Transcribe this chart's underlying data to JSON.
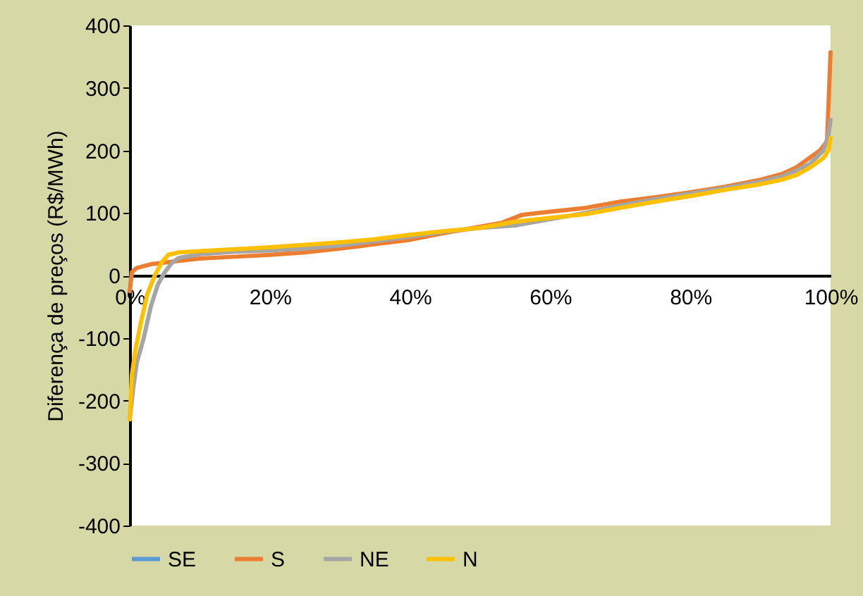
{
  "chart_data": {
    "type": "line",
    "ylabel": "Diferença de preços (R$/MWh)",
    "xlim": [
      0,
      100
    ],
    "xticks": [
      {
        "value": 0,
        "label": "0%"
      },
      {
        "value": 20,
        "label": "20%"
      },
      {
        "value": 40,
        "label": "40%"
      },
      {
        "value": 60,
        "label": "60%"
      },
      {
        "value": 80,
        "label": "80%"
      },
      {
        "value": 100,
        "label": "100%"
      }
    ],
    "ylim": [
      -400,
      400
    ],
    "yticks": [
      -400,
      -300,
      -200,
      -100,
      0,
      100,
      200,
      300,
      400
    ],
    "grid": false,
    "legend": "bottom",
    "marker": "none",
    "line_style": "solid",
    "series": [
      {
        "name": "SE",
        "color": "#5b9bd5",
        "values": [
          null
        ]
      },
      {
        "name": "S",
        "color": "#ed7d31",
        "x": [
          0,
          0.3,
          1,
          3,
          6,
          10,
          15,
          20,
          25,
          30,
          35,
          40,
          45,
          50,
          53,
          56,
          60,
          65,
          70,
          75,
          80,
          85,
          90,
          93,
          95,
          97,
          98.5,
          99.5,
          100
        ],
        "values": [
          -25,
          5,
          12,
          18,
          22,
          27,
          30,
          33,
          37,
          43,
          50,
          57,
          68,
          78,
          84,
          97,
          102,
          108,
          118,
          125,
          133,
          142,
          153,
          162,
          172,
          188,
          200,
          215,
          357
        ]
      },
      {
        "name": "NE",
        "color": "#a5a5a5",
        "x": [
          0,
          0.5,
          1,
          2,
          3,
          4,
          5,
          6,
          7,
          10,
          15,
          20,
          25,
          30,
          35,
          40,
          45,
          50,
          55,
          60,
          65,
          70,
          75,
          80,
          85,
          90,
          93,
          95,
          97,
          99,
          99.7,
          100
        ],
        "values": [
          -230,
          -180,
          -140,
          -100,
          -50,
          -15,
          5,
          20,
          28,
          34,
          38,
          40,
          43,
          48,
          55,
          62,
          70,
          76,
          80,
          90,
          100,
          112,
          122,
          131,
          140,
          150,
          158,
          167,
          178,
          200,
          225,
          249
        ]
      },
      {
        "name": "N",
        "color": "#ffc000",
        "x": [
          0,
          0.3,
          0.8,
          1.5,
          2.5,
          3.5,
          4.5,
          5.5,
          7,
          10,
          15,
          20,
          25,
          30,
          35,
          40,
          45,
          50,
          55,
          60,
          65,
          70,
          75,
          80,
          85,
          90,
          93,
          95,
          97,
          99,
          99.7,
          100
        ],
        "values": [
          -230,
          -160,
          -120,
          -80,
          -30,
          -2,
          20,
          33,
          37,
          39,
          42,
          45,
          49,
          53,
          58,
          65,
          71,
          76,
          86,
          92,
          98,
          108,
          118,
          127,
          137,
          146,
          153,
          160,
          172,
          188,
          200,
          220
        ]
      }
    ]
  }
}
